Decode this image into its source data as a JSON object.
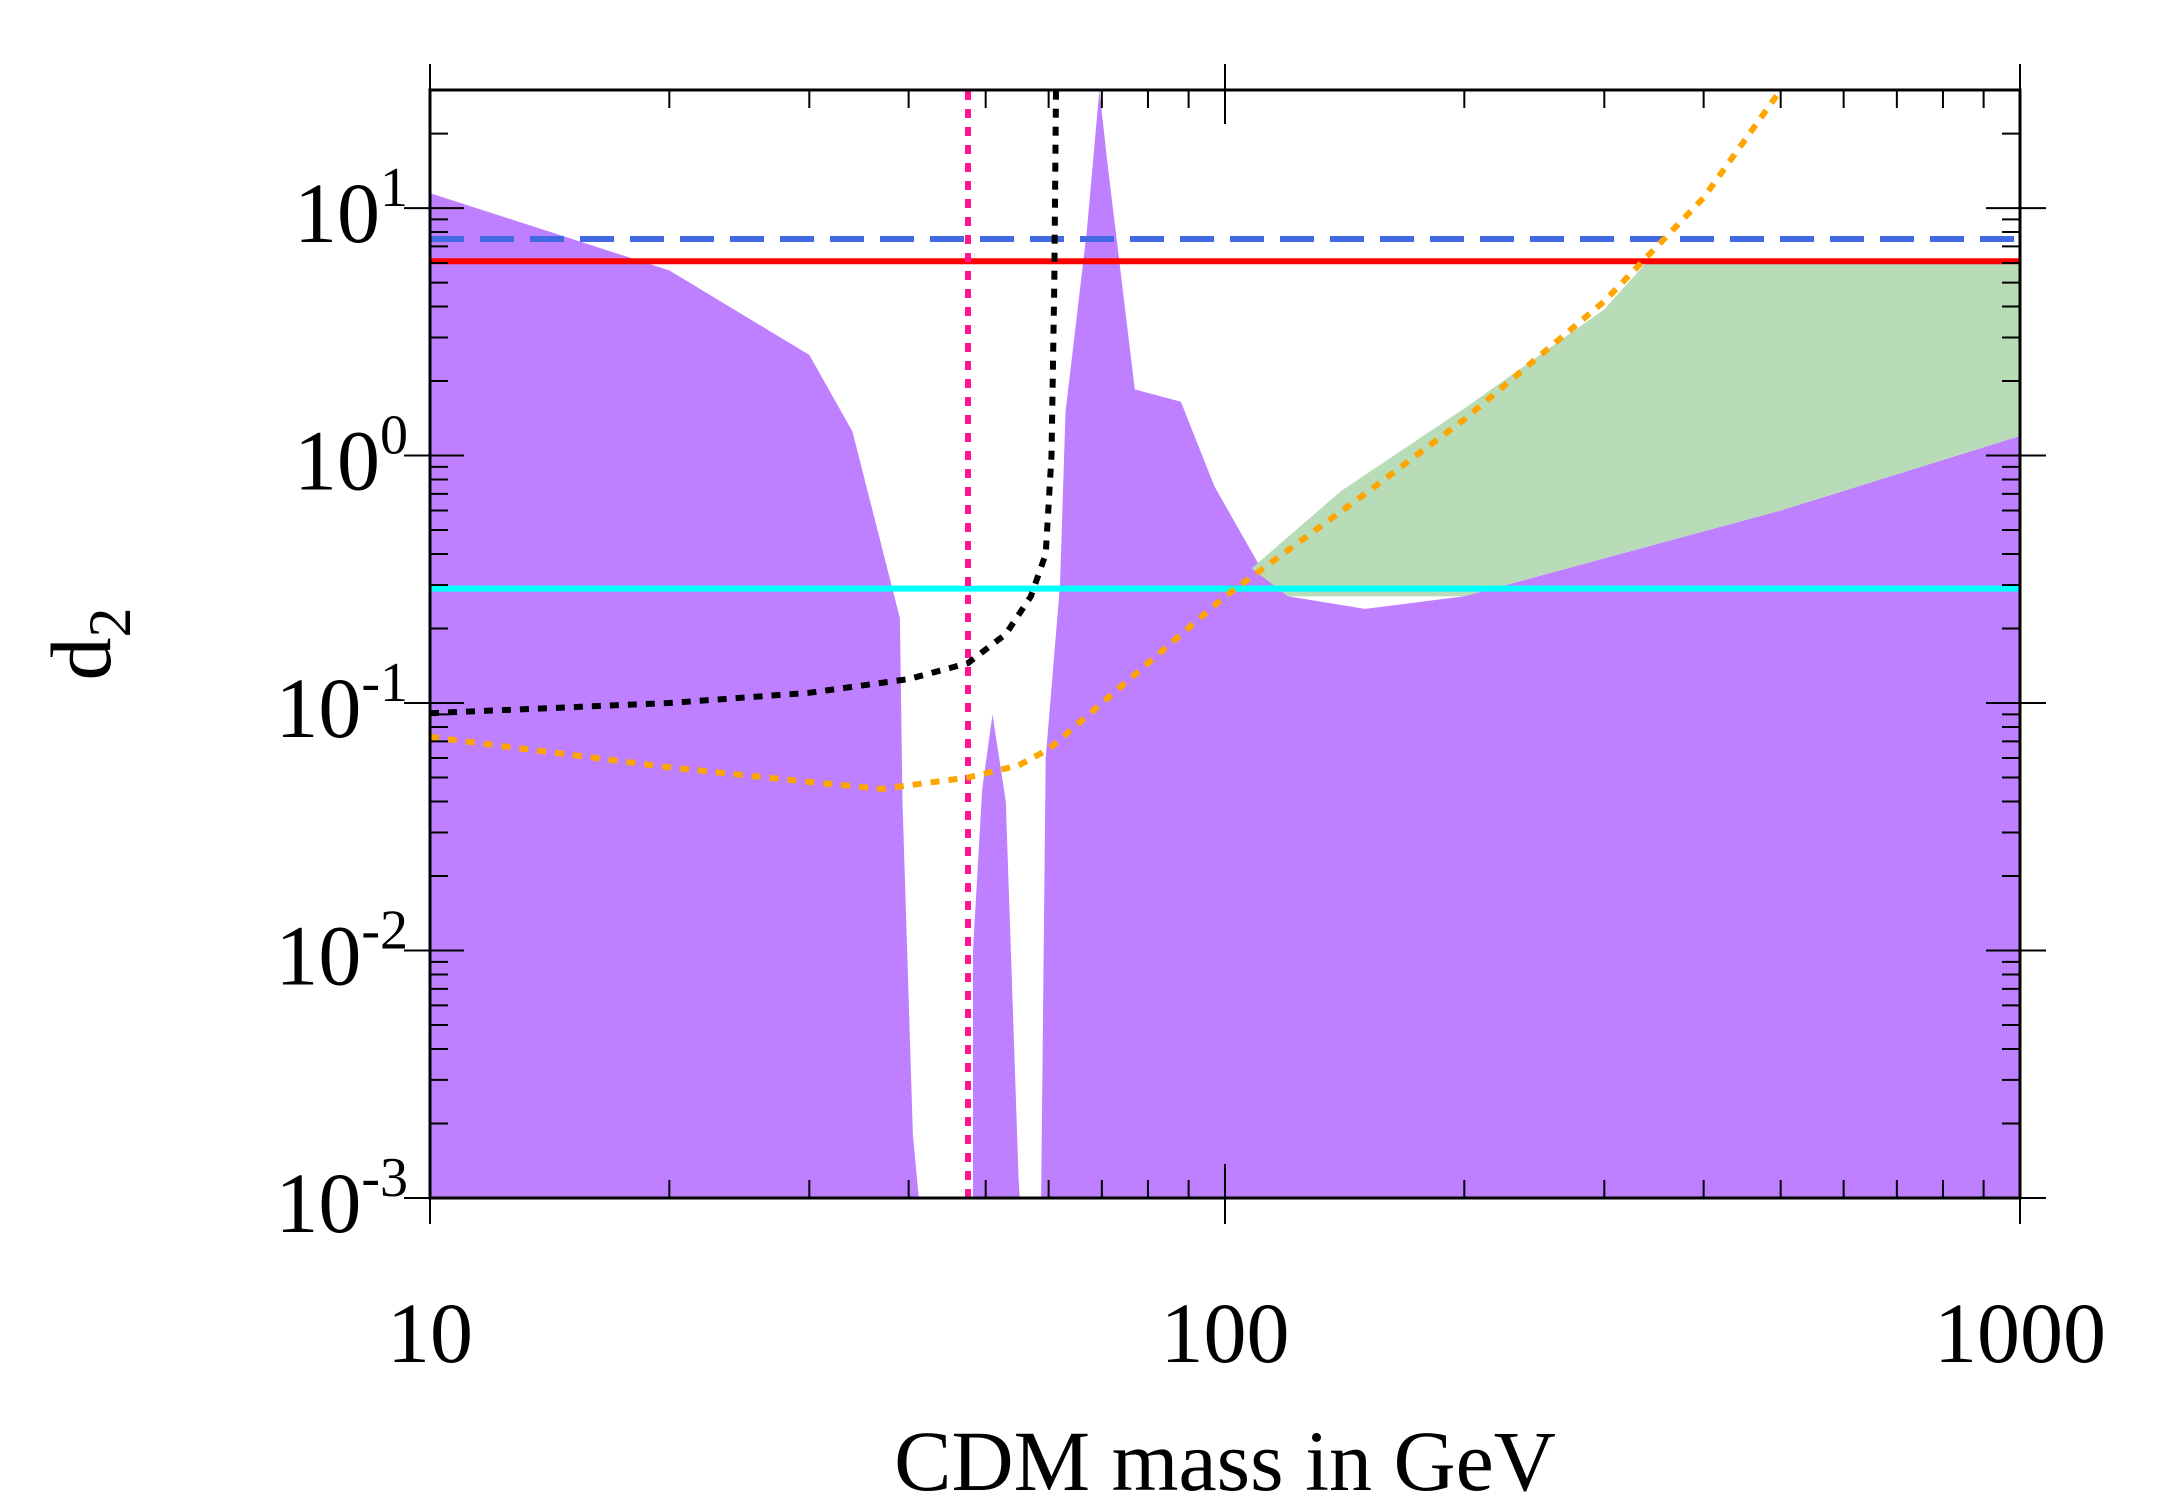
{
  "chart_data": {
    "type": "area",
    "xlabel": "CDM mass in GeV",
    "ylabel": "d",
    "ylabel_subscript": "2",
    "xscale": "log",
    "yscale": "log",
    "xlim": [
      10,
      1000
    ],
    "ylim": [
      0.001,
      30
    ],
    "x_ticks": [
      {
        "value": 10,
        "label": "10"
      },
      {
        "value": 100,
        "label": "100"
      },
      {
        "value": 1000,
        "label": "1000"
      }
    ],
    "y_ticks": [
      {
        "value": 0.001,
        "base": "10",
        "exp": "-3"
      },
      {
        "value": 0.01,
        "base": "10",
        "exp": "-2"
      },
      {
        "value": 0.1,
        "base": "10",
        "exp": "-1"
      },
      {
        "value": 1,
        "base": "10",
        "exp": "0"
      },
      {
        "value": 10,
        "base": "10",
        "exp": "1"
      }
    ],
    "colors": {
      "purple": "#bf80ff",
      "green": "#b8dbb8",
      "red": "#ff0000",
      "blue_dashed": "#4169e1",
      "cyan": "#00ffff",
      "magenta": "#ff1493",
      "black": "#000000",
      "orange": "#ffa500"
    },
    "regions": [
      {
        "name": "purple-allowed-region",
        "color": "#bf80ff",
        "points": [
          [
            10,
            11.5
          ],
          [
            20,
            5.6
          ],
          [
            30,
            2.55
          ],
          [
            34,
            1.25
          ],
          [
            39,
            0.22
          ],
          [
            39.3,
            0.04
          ],
          [
            40.5,
            0.0018
          ],
          [
            41.2,
            0.001
          ],
          [
            48.2,
            0.001
          ],
          [
            48.2,
            0.01
          ],
          [
            49.5,
            0.045
          ],
          [
            51,
            0.09
          ],
          [
            53,
            0.04
          ],
          [
            55,
            0.0012
          ],
          [
            55.2,
            0.001
          ],
          [
            58.7,
            0.001
          ],
          [
            59.5,
            0.06
          ],
          [
            62,
            0.3
          ],
          [
            63,
            1.5
          ],
          [
            67,
            8
          ],
          [
            69.5,
            32
          ],
          [
            71,
            16
          ],
          [
            77,
            1.85
          ],
          [
            88,
            1.65
          ],
          [
            97,
            0.75
          ],
          [
            111,
            0.35
          ],
          [
            120,
            0.27
          ],
          [
            150,
            0.24
          ],
          [
            200,
            0.27
          ],
          [
            500,
            0.6
          ],
          [
            1000,
            1.2
          ],
          [
            1000,
            0.001
          ],
          [
            10,
            0.001
          ]
        ]
      },
      {
        "name": "green-region",
        "color": "#b8dbb8",
        "points": [
          [
            108,
            0.35
          ],
          [
            140,
            0.72
          ],
          [
            200,
            1.55
          ],
          [
            300,
            3.9
          ],
          [
            340,
            6.1
          ],
          [
            1000,
            6.1
          ],
          [
            1000,
            1.2
          ],
          [
            500,
            0.6
          ],
          [
            200,
            0.27
          ],
          [
            120,
            0.27
          ]
        ]
      }
    ],
    "lines": [
      {
        "name": "blue-dashed-line",
        "color": "#4169e1",
        "style": "dashed",
        "points": [
          [
            10,
            7.5
          ],
          [
            1000,
            7.5
          ]
        ]
      },
      {
        "name": "red-line",
        "color": "#ff0000",
        "style": "solid",
        "points": [
          [
            10,
            6.1
          ],
          [
            1000,
            6.1
          ]
        ]
      },
      {
        "name": "cyan-line",
        "color": "#00ffff",
        "style": "solid",
        "points": [
          [
            10,
            0.29
          ],
          [
            1000,
            0.29
          ]
        ]
      },
      {
        "name": "magenta-dotted-line",
        "color": "#ff1493",
        "style": "dotted",
        "points": [
          [
            47.5,
            0.001
          ],
          [
            47.5,
            30
          ]
        ]
      },
      {
        "name": "black-dotted-curve",
        "color": "#000000",
        "style": "dotted",
        "points": [
          [
            10,
            0.091
          ],
          [
            20,
            0.1
          ],
          [
            30,
            0.11
          ],
          [
            40,
            0.125
          ],
          [
            47.5,
            0.145
          ],
          [
            53,
            0.19
          ],
          [
            57,
            0.27
          ],
          [
            59.5,
            0.4
          ],
          [
            60.5,
            1.0
          ],
          [
            61,
            5
          ],
          [
            61.3,
            30
          ]
        ]
      },
      {
        "name": "orange-dotted-curve",
        "color": "#ffa500",
        "style": "dotted",
        "points": [
          [
            10,
            0.073
          ],
          [
            20,
            0.055
          ],
          [
            30,
            0.048
          ],
          [
            37,
            0.045
          ],
          [
            47.5,
            0.05
          ],
          [
            55,
            0.056
          ],
          [
            60,
            0.065
          ],
          [
            70,
            0.1
          ],
          [
            80,
            0.145
          ],
          [
            100,
            0.27
          ],
          [
            150,
            0.7
          ],
          [
            200,
            1.4
          ],
          [
            300,
            4.2
          ],
          [
            400,
            11
          ],
          [
            500,
            30
          ]
        ]
      }
    ]
  }
}
